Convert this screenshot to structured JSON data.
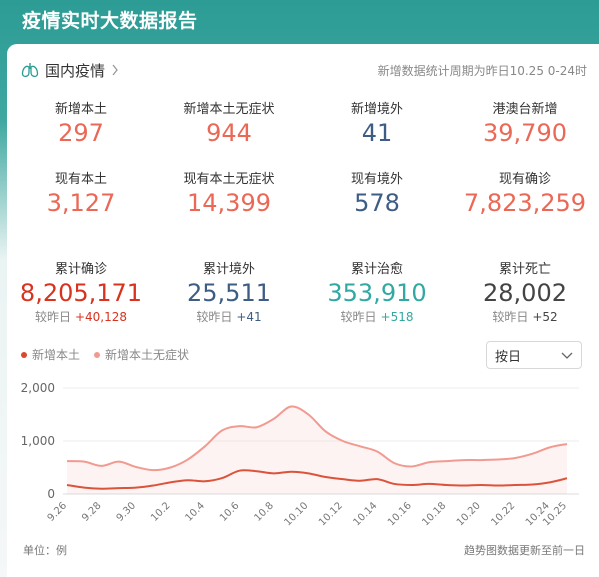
{
  "header": {
    "title": "疫情实时大数据报告"
  },
  "section": {
    "title": "国内疫情",
    "note": "新增数据统计周期为昨日10.25 0-24时"
  },
  "stats_row1": [
    {
      "label": "新增本土",
      "value": "297",
      "color": "#ea6855"
    },
    {
      "label": "新增本土无症状",
      "value": "944",
      "color": "#ea6855"
    },
    {
      "label": "新增境外",
      "value": "41",
      "color": "#3e5d85"
    },
    {
      "label": "港澳台新增",
      "value": "39,790",
      "color": "#ea6855"
    }
  ],
  "stats_row2": [
    {
      "label": "现有本土",
      "value": "3,127",
      "color": "#ea6855"
    },
    {
      "label": "现有本土无症状",
      "value": "14,399",
      "color": "#ea6855"
    },
    {
      "label": "现有境外",
      "value": "578",
      "color": "#3e5d85"
    },
    {
      "label": "现有确诊",
      "value": "7,823,259",
      "color": "#ea6855"
    }
  ],
  "stats_row3": [
    {
      "label": "累计确诊",
      "value": "8,205,171",
      "sub_label": "较昨日",
      "delta": "+40,128",
      "color": "#d7331f",
      "delta_color": "#d7331f"
    },
    {
      "label": "累计境外",
      "value": "25,511",
      "sub_label": "较昨日",
      "delta": "+41",
      "color": "#3e5d85",
      "delta_color": "#3e5d85"
    },
    {
      "label": "累计治愈",
      "value": "353,910",
      "sub_label": "较昨日",
      "delta": "+518",
      "color": "#32a8a2",
      "delta_color": "#32a8a2"
    },
    {
      "label": "累计死亡",
      "value": "28,002",
      "sub_label": "较昨日",
      "delta": "+52",
      "color": "#444444",
      "delta_color": "#444444"
    }
  ],
  "legend": [
    {
      "name": "新增本土",
      "color": "#d9492f"
    },
    {
      "name": "新增本土无症状",
      "color": "#f19a90"
    }
  ],
  "select": {
    "value": "按日"
  },
  "footer": {
    "unit": "单位：例",
    "note": "趋势图数据更新至前一日"
  },
  "chart_data": {
    "type": "line",
    "x": [
      "9.26",
      "9.27",
      "9.28",
      "9.29",
      "9.30",
      "10.1",
      "10.2",
      "10.3",
      "10.4",
      "10.5",
      "10.6",
      "10.7",
      "10.8",
      "10.9",
      "10.10",
      "10.11",
      "10.12",
      "10.13",
      "10.14",
      "10.15",
      "10.16",
      "10.17",
      "10.18",
      "10.19",
      "10.20",
      "10.21",
      "10.22",
      "10.23",
      "10.24",
      "10.25"
    ],
    "tick_labels": [
      "9.26",
      "9.28",
      "9.30",
      "10.2",
      "10.4",
      "10.6",
      "10.8",
      "10.10",
      "10.12",
      "10.14",
      "10.16",
      "10.18",
      "10.20",
      "10.22",
      "10.24",
      "10.25"
    ],
    "series": [
      {
        "name": "新增本土",
        "color": "#d9492f",
        "fill": false,
        "values": [
          170,
          120,
          100,
          110,
          120,
          160,
          220,
          260,
          240,
          300,
          440,
          430,
          390,
          420,
          390,
          320,
          280,
          250,
          280,
          190,
          170,
          190,
          170,
          160,
          170,
          160,
          170,
          180,
          220,
          297
        ]
      },
      {
        "name": "新增本土无症状",
        "color": "#f19a90",
        "fill": true,
        "values": [
          620,
          610,
          530,
          610,
          510,
          450,
          500,
          650,
          900,
          1200,
          1280,
          1260,
          1420,
          1650,
          1500,
          1180,
          1000,
          900,
          800,
          580,
          520,
          600,
          620,
          640,
          640,
          650,
          680,
          760,
          880,
          944
        ]
      }
    ],
    "y_ticks": [
      "0",
      "1,000",
      "2,000"
    ],
    "ylim": [
      0,
      2000
    ],
    "grid": true
  }
}
